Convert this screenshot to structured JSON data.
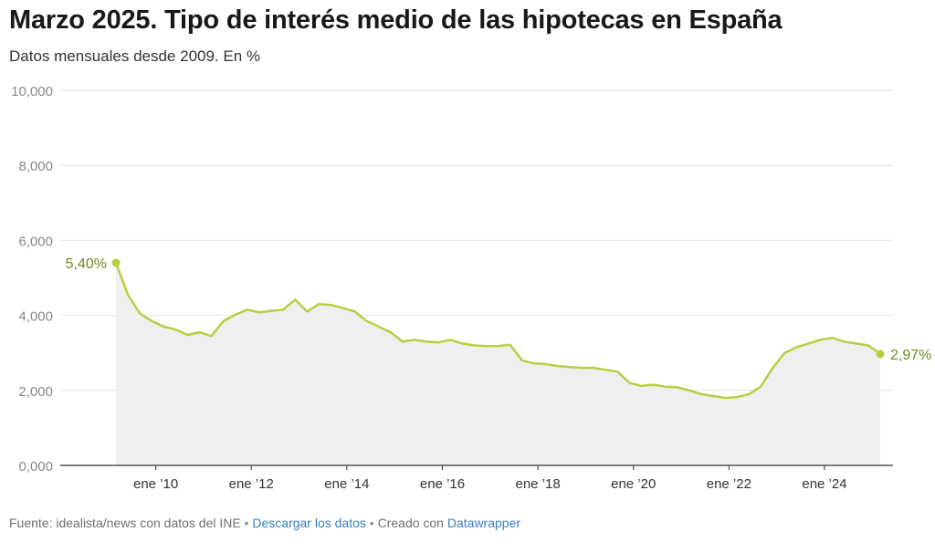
{
  "header": {
    "title": "Marzo 2025. Tipo de interés medio de las hipotecas en España",
    "subtitle": "Datos mensuales desde 2009. En %"
  },
  "footer": {
    "source": "Fuente: idealista/news con datos del INE",
    "separator": "•",
    "download_label": "Descargar los datos",
    "created_with": "Creado con",
    "tool_label": "Datawrapper"
  },
  "colors": {
    "line": "#b5d040",
    "area": "#efefef",
    "label": "#6b8a1a",
    "grid": "#e2e2e2",
    "axis_text": "#888888"
  },
  "chart_data": {
    "type": "area",
    "title": "Marzo 2025. Tipo de interés medio de las hipotecas en España",
    "subtitle": "Datos mensuales desde 2009. En %",
    "xlabel": "",
    "ylabel": "",
    "ylim": [
      0,
      10
    ],
    "xlim": [
      "2009-03",
      "2025-03"
    ],
    "y_ticks": [
      {
        "value": 0,
        "label": "0,000"
      },
      {
        "value": 2,
        "label": "2,000"
      },
      {
        "value": 4,
        "label": "4,000"
      },
      {
        "value": 6,
        "label": "6,000"
      },
      {
        "value": 8,
        "label": "8,000"
      },
      {
        "value": 10,
        "label": "10,000"
      }
    ],
    "x_ticks": [
      {
        "date": "2010-01",
        "label": "ene ’10"
      },
      {
        "date": "2012-01",
        "label": "ene ’12"
      },
      {
        "date": "2014-01",
        "label": "ene ’14"
      },
      {
        "date": "2016-01",
        "label": "ene ’16"
      },
      {
        "date": "2018-01",
        "label": "ene ’18"
      },
      {
        "date": "2020-01",
        "label": "ene ’20"
      },
      {
        "date": "2022-01",
        "label": "ene ’22"
      },
      {
        "date": "2024-01",
        "label": "ene ’24"
      }
    ],
    "grid": true,
    "annotations": [
      {
        "date": "2009-03",
        "label": "5,40%",
        "position": "left"
      },
      {
        "date": "2025-03",
        "label": "2,97%",
        "position": "right"
      }
    ],
    "series": [
      {
        "x": [
          "2009-03",
          "2009-06",
          "2009-09",
          "2009-12",
          "2010-03",
          "2010-06",
          "2010-09",
          "2010-12",
          "2011-03",
          "2011-06",
          "2011-09",
          "2011-12",
          "2012-03",
          "2012-06",
          "2012-09",
          "2012-12",
          "2013-03",
          "2013-06",
          "2013-09",
          "2013-12",
          "2014-03",
          "2014-06",
          "2014-09",
          "2014-12",
          "2015-03",
          "2015-06",
          "2015-09",
          "2015-12",
          "2016-03",
          "2016-06",
          "2016-09",
          "2016-12",
          "2017-03",
          "2017-06",
          "2017-09",
          "2017-12",
          "2018-03",
          "2018-06",
          "2018-09",
          "2018-12",
          "2019-03",
          "2019-06",
          "2019-09",
          "2019-12",
          "2020-03",
          "2020-06",
          "2020-09",
          "2020-12",
          "2021-03",
          "2021-06",
          "2021-09",
          "2021-12",
          "2022-03",
          "2022-06",
          "2022-09",
          "2022-12",
          "2023-03",
          "2023-06",
          "2023-09",
          "2023-12",
          "2024-03",
          "2024-06",
          "2024-09",
          "2024-12",
          "2025-03"
        ],
        "values": [
          5.4,
          4.55,
          4.05,
          3.85,
          3.7,
          3.62,
          3.48,
          3.55,
          3.45,
          3.85,
          4.02,
          4.15,
          4.08,
          4.12,
          4.15,
          4.42,
          4.1,
          4.3,
          4.28,
          4.2,
          4.1,
          3.85,
          3.7,
          3.55,
          3.3,
          3.35,
          3.3,
          3.28,
          3.35,
          3.25,
          3.2,
          3.18,
          3.18,
          3.22,
          2.8,
          2.72,
          2.7,
          2.65,
          2.62,
          2.6,
          2.6,
          2.55,
          2.5,
          2.2,
          2.12,
          2.15,
          2.1,
          2.08,
          2.0,
          1.9,
          1.85,
          1.8,
          1.82,
          1.9,
          2.1,
          2.6,
          3.0,
          3.15,
          3.25,
          3.35,
          3.4,
          3.3,
          3.25,
          3.2,
          2.97
        ]
      }
    ]
  }
}
